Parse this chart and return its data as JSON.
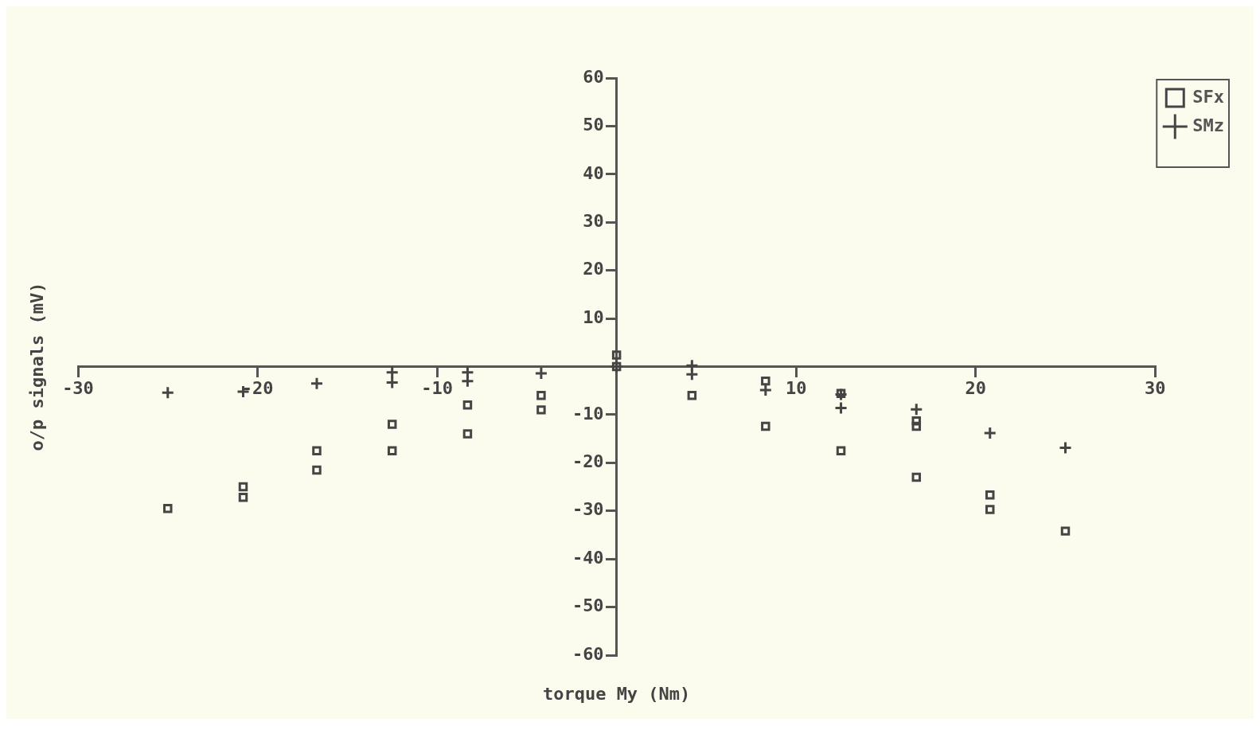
{
  "chart_data": {
    "type": "scatter",
    "xlabel": "torque My (Nm)",
    "ylabel": "o/p signals (mV)",
    "xlim": [
      -30,
      30
    ],
    "xticks": [
      -30,
      -20,
      -10,
      10,
      20,
      30
    ],
    "ylim": [
      -60,
      60
    ],
    "yticks": [
      -60,
      -50,
      -40,
      -30,
      -20,
      -10,
      10,
      20,
      30,
      40,
      50,
      60
    ],
    "grid": false,
    "legend": "top right",
    "series": [
      {
        "name": "SFx",
        "color": "#454545",
        "marker": "square",
        "x": [
          -25,
          -20.8,
          -20.8,
          -16.7,
          -16.7,
          -12.5,
          -12.5,
          -8.3,
          -8.3,
          -4.2,
          -4.2,
          0,
          0,
          4.2,
          8.3,
          8.3,
          12.5,
          12.5,
          16.7,
          16.7,
          16.7,
          20.8,
          20.8,
          25
        ],
        "values": [
          -29.5,
          -25,
          -27.2,
          -17.5,
          -21.5,
          -12,
          -17.5,
          -8,
          -14,
          -6,
          -9,
          2.4,
          0,
          -6,
          -3,
          -12.4,
          -5.6,
          -17.5,
          -11.3,
          -12.4,
          -23,
          -26.7,
          -29.7,
          -34.2
        ]
      },
      {
        "name": "SMz",
        "color": "#454545",
        "marker": "cross",
        "x": [
          -25,
          -20.8,
          -16.7,
          -12.5,
          -12.5,
          -8.3,
          -8.3,
          -4.2,
          0,
          4.2,
          4.2,
          8.3,
          12.5,
          12.5,
          16.7,
          20.8,
          25
        ],
        "values": [
          -5.4,
          -5.2,
          -3.5,
          -1.2,
          -3.3,
          -1.2,
          -3,
          -1.4,
          0,
          0.2,
          -1.6,
          -4.9,
          -5.8,
          -8.6,
          -8.9,
          -13.8,
          -16.9
        ]
      }
    ]
  }
}
